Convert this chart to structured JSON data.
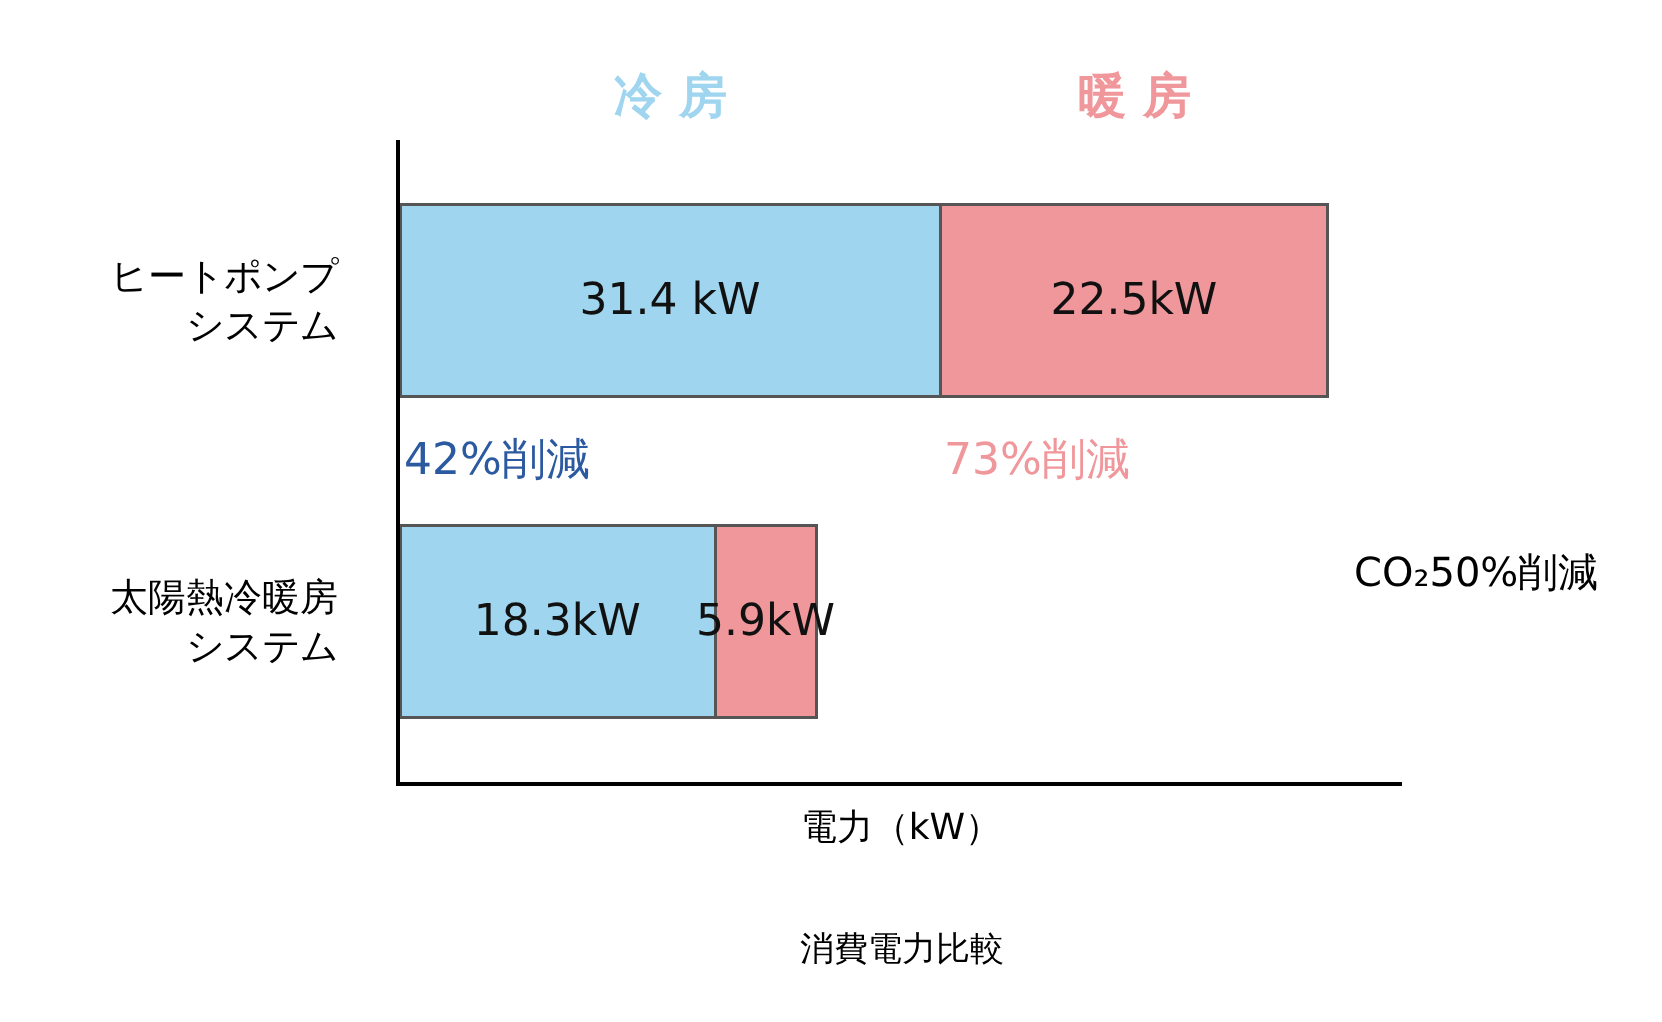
{
  "chart_data": {
    "type": "bar",
    "orientation": "horizontal",
    "stacked": true,
    "categories": [
      "ヒートポンプシステム",
      "太陽熱冷暖房システム"
    ],
    "series": [
      {
        "name": "冷 房",
        "color": "#9fd5ef",
        "values": [
          31.4,
          18.3
        ],
        "value_labels": [
          "31.4 kW",
          "18.3kW"
        ]
      },
      {
        "name": "暖 房",
        "color": "#f0979c",
        "values": [
          22.5,
          5.9
        ],
        "value_labels": [
          "22.5kW",
          "5.9kW"
        ]
      }
    ],
    "xlabel": "電力（kW）",
    "tick_labels": "y",
    "legend": false,
    "annotations": [
      "42%削減",
      "73%削減",
      "CO₂50%削減",
      "消費電力比較"
    ]
  }
}
